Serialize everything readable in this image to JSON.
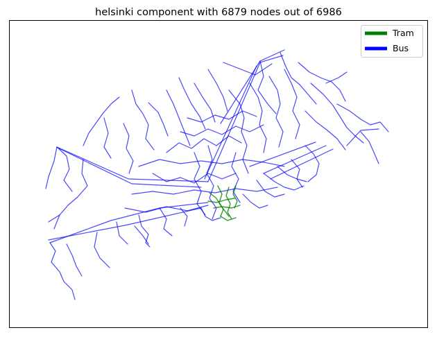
{
  "figure": {
    "title": "helsinki component with 6879 nodes out of 6986"
  },
  "legend": {
    "placement": "top-right",
    "items": [
      {
        "label": "Tram",
        "color": "#008000"
      },
      {
        "label": "Bus",
        "color": "#0000ff"
      }
    ]
  },
  "axes": {
    "ticks_visible": false,
    "grid": false
  }
}
